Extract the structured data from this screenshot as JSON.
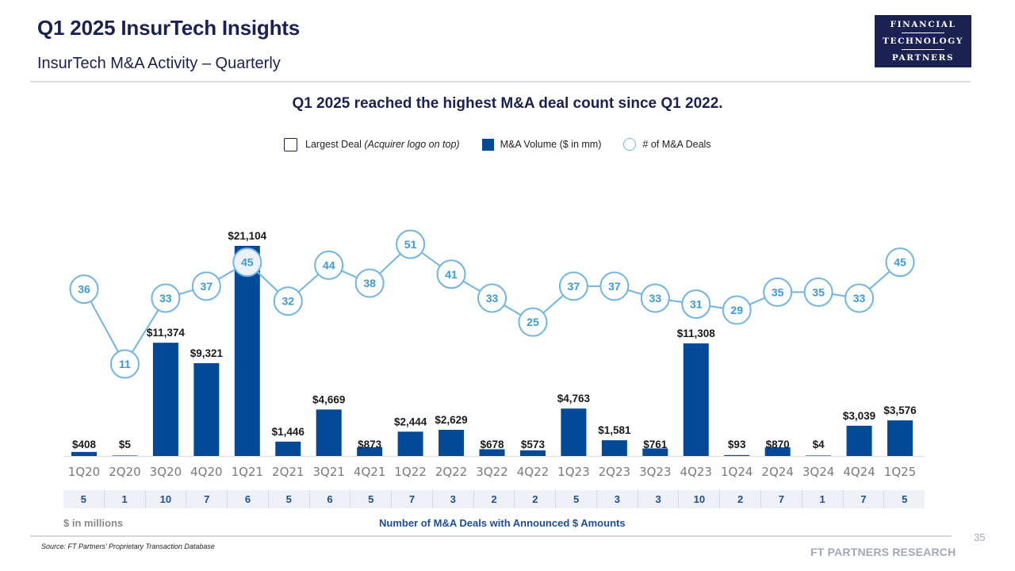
{
  "header": {
    "title": "Q1 2025 InsurTech Insights",
    "subtitle": "InsurTech M&A Activity – Quarterly",
    "logo_lines": [
      "FINANCIAL",
      "TECHNOLOGY",
      "PARTNERS"
    ]
  },
  "headline": "Q1 2025 reached the highest M&A deal count since Q1 2022.",
  "legend": {
    "largest_deal": "Largest Deal",
    "largest_deal_note": "(Acquirer logo on top)",
    "volume": "M&A Volume ($ in mm)",
    "deal_count": "# of M&A Deals"
  },
  "colors": {
    "bar": "#024a97",
    "circle_stroke": "#6fb5e6",
    "circle_text": "#3d9ad8",
    "title": "#1b2150"
  },
  "chart_data": {
    "type": "bar",
    "title": "InsurTech M&A Activity – Quarterly",
    "xlabel": "",
    "ylabel": "$ in millions",
    "categories": [
      "1Q20",
      "2Q20",
      "3Q20",
      "4Q20",
      "1Q21",
      "2Q21",
      "3Q21",
      "4Q21",
      "1Q22",
      "2Q22",
      "3Q22",
      "4Q22",
      "1Q23",
      "2Q23",
      "3Q23",
      "4Q23",
      "1Q24",
      "2Q24",
      "3Q24",
      "4Q24",
      "1Q25"
    ],
    "series": [
      {
        "name": "M&A Volume ($ in mm)",
        "type": "bar",
        "values": [
          408,
          5,
          11374,
          9321,
          21104,
          1446,
          4669,
          873,
          2444,
          2629,
          678,
          573,
          4763,
          1581,
          761,
          11308,
          93,
          870,
          4,
          3039,
          3576
        ],
        "labels": [
          "$408",
          "$5",
          "$11,374",
          "$9,321",
          "$21,104",
          "$1,446",
          "$4,669",
          "$873",
          "$2,444",
          "$2,629",
          "$678",
          "$573",
          "$4,763",
          "$1,581",
          "$761",
          "$11,308",
          "$93",
          "$870",
          "$4",
          "$3,039",
          "$3,576"
        ]
      },
      {
        "name": "# of M&A Deals",
        "type": "line",
        "values": [
          36,
          11,
          33,
          37,
          45,
          32,
          44,
          38,
          51,
          41,
          33,
          25,
          37,
          37,
          33,
          31,
          29,
          35,
          35,
          33,
          45
        ]
      },
      {
        "name": "Number of M&A Deals with Announced $ Amounts",
        "type": "table",
        "values": [
          5,
          1,
          10,
          7,
          6,
          5,
          6,
          5,
          7,
          3,
          2,
          2,
          5,
          3,
          3,
          10,
          2,
          7,
          1,
          7,
          5
        ]
      }
    ],
    "ylim": [
      0,
      21104
    ],
    "grid": false,
    "legend_position": "top-center"
  },
  "footer": {
    "unit_note": "$ in millions",
    "deals_caption": "Number of M&A Deals with Announced $ Amounts",
    "source": "Source: FT Partners’ Proprietary Transaction Database",
    "page_number": "35",
    "brand": "FT PARTNERS RESEARCH"
  }
}
